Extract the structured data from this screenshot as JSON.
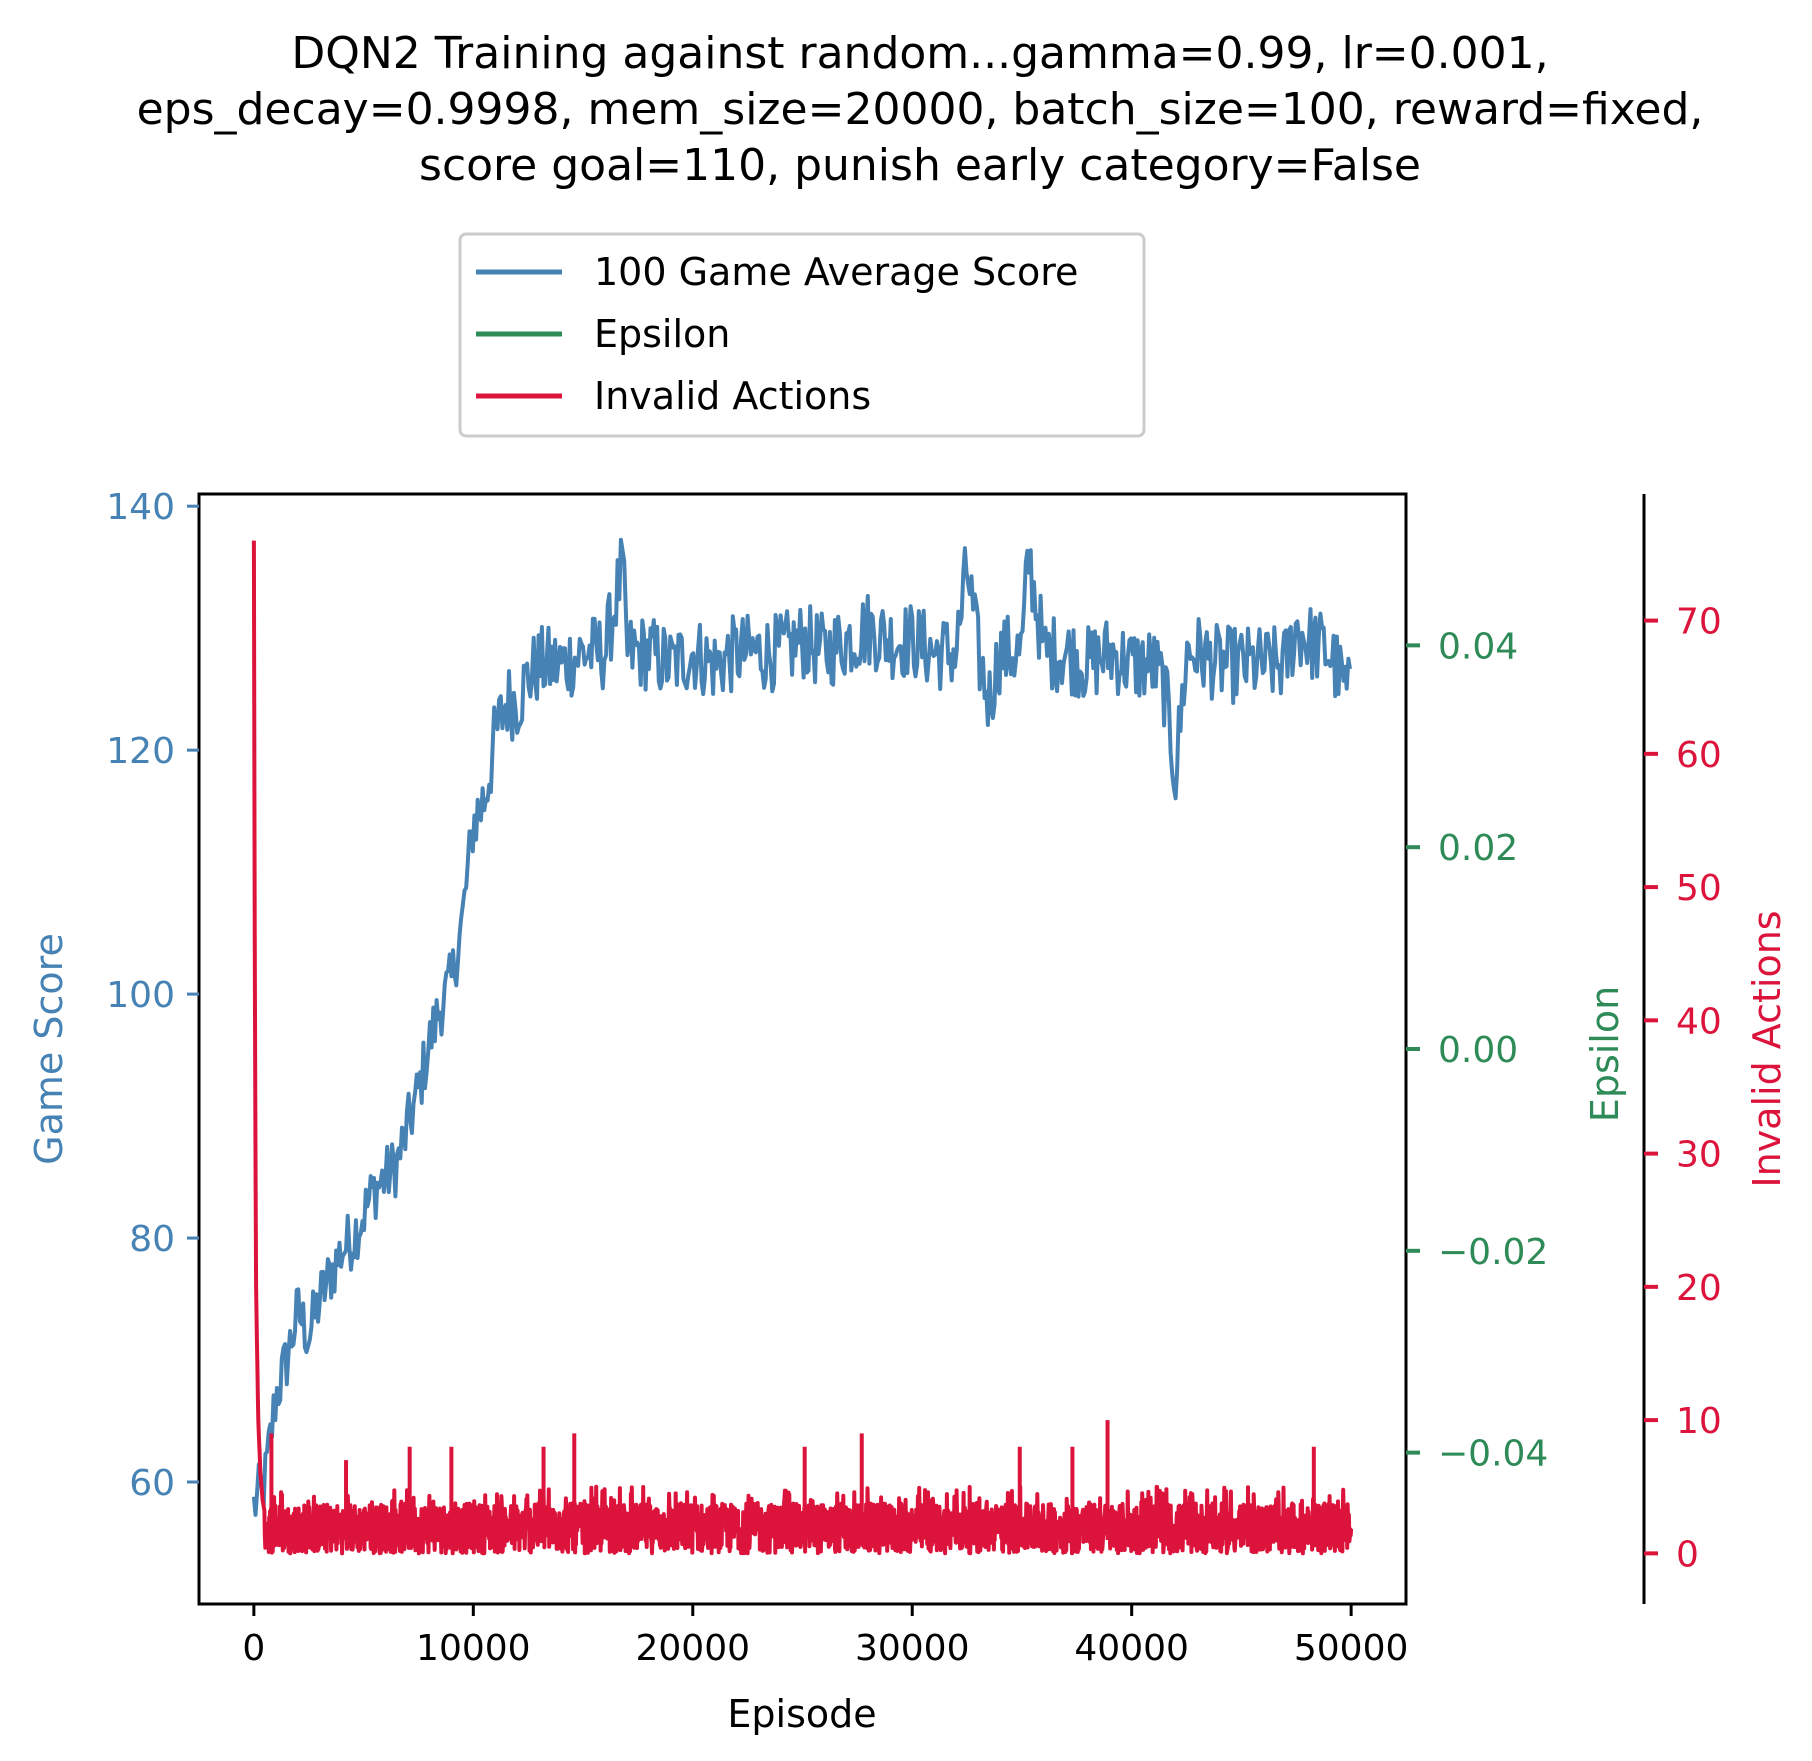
{
  "chart_data": {
    "type": "line",
    "title_lines": [
      "DQN2 Training against random...gamma=0.99, lr=0.001,",
      "eps_decay=0.9998, mem_size=20000, batch_size=100, reward=fixed,",
      "score goal=110, punish early category=False"
    ],
    "xlabel": "Episode",
    "xlim": [
      -2500,
      52500
    ],
    "xticks": [
      0,
      10000,
      20000,
      30000,
      40000,
      50000
    ],
    "xtick_labels": [
      "0",
      "10000",
      "20000",
      "30000",
      "40000",
      "50000"
    ],
    "axes": {
      "score": {
        "label": "Game Score",
        "color": "#4682b4",
        "ylim": [
          50,
          141
        ],
        "ticks": [
          60,
          80,
          100,
          120,
          140
        ],
        "tick_labels": [
          "60",
          "80",
          "100",
          "120",
          "140"
        ]
      },
      "epsilon": {
        "label": "Epsilon",
        "color": "#2e8b57",
        "ylim": [
          -0.055,
          0.055
        ],
        "ticks": [
          -0.04,
          -0.02,
          0.0,
          0.02,
          0.04
        ],
        "tick_labels": [
          "−0.04",
          "−0.02",
          "0.00",
          "0.02",
          "0.04"
        ]
      },
      "invalid": {
        "label": "Invalid Actions",
        "color": "#dc143c",
        "ylim": [
          -3.8,
          79.5
        ],
        "ticks": [
          0,
          10,
          20,
          30,
          40,
          50,
          60,
          70
        ],
        "tick_labels": [
          "0",
          "10",
          "20",
          "30",
          "40",
          "50",
          "60",
          "70"
        ]
      }
    },
    "legend": {
      "placement": "above plot, center",
      "entries": [
        "100 Game Average Score",
        "Epsilon",
        "Invalid Actions"
      ]
    },
    "series": [
      {
        "name": "100 Game Average Score",
        "axis": "score",
        "color": "#4682b4",
        "x": [
          0,
          500,
          1000,
          1500,
          2000,
          2500,
          3000,
          3500,
          4000,
          4500,
          5000,
          5500,
          6000,
          6500,
          7000,
          7500,
          8000,
          8500,
          9000,
          9500,
          10000,
          10500,
          11000,
          11500,
          12000,
          12500,
          13000,
          14000,
          15000,
          16000,
          16800,
          17000,
          18000,
          19000,
          20000,
          21000,
          22000,
          23000,
          24000,
          25000,
          26000,
          27000,
          28000,
          29000,
          30000,
          31000,
          32000,
          32500,
          33000,
          33500,
          34000,
          35000,
          35300,
          36000,
          37000,
          38000,
          39000,
          40000,
          41000,
          41500,
          42000,
          42500,
          43000,
          44000,
          45000,
          46000,
          47000,
          47500,
          48000,
          49000,
          50000
        ],
        "values": [
          58,
          60,
          67,
          70,
          74,
          72,
          75,
          77,
          79,
          80,
          82,
          84,
          85,
          86,
          89,
          92,
          96,
          99,
          101,
          106,
          114,
          116,
          121,
          124,
          124,
          126,
          127,
          127,
          128,
          128,
          135,
          128,
          128,
          127,
          128,
          127,
          128,
          128,
          128,
          129,
          128,
          129,
          130,
          129,
          129,
          128,
          128,
          135,
          128,
          124,
          128,
          128,
          136,
          128,
          128,
          127,
          128,
          127,
          127,
          125,
          118,
          128,
          128,
          127,
          127,
          127,
          127,
          130,
          129,
          128,
          124
        ],
        "noise": 3.2
      },
      {
        "name": "Epsilon",
        "axis": "epsilon",
        "color": "#2e8b57",
        "x": [],
        "values": []
      },
      {
        "name": "Invalid Actions",
        "axis": "invalid",
        "color": "#dc143c",
        "x": [
          0,
          50,
          100,
          200,
          300,
          400,
          500,
          1000,
          5000,
          10000,
          20000,
          30000,
          40000,
          50000
        ],
        "values": [
          76,
          40,
          20,
          10,
          6,
          4,
          3,
          2,
          2,
          2,
          2,
          2,
          2,
          2
        ],
        "typical_range": [
          0,
          5
        ],
        "spikes": [
          {
            "x": 800,
            "value": 9
          },
          {
            "x": 4200,
            "value": 7
          },
          {
            "x": 7100,
            "value": 8
          },
          {
            "x": 9000,
            "value": 8
          },
          {
            "x": 13200,
            "value": 8
          },
          {
            "x": 14600,
            "value": 9
          },
          {
            "x": 25100,
            "value": 8
          },
          {
            "x": 27700,
            "value": 9
          },
          {
            "x": 34900,
            "value": 8
          },
          {
            "x": 37300,
            "value": 8
          },
          {
            "x": 38900,
            "value": 10
          },
          {
            "x": 48300,
            "value": 8
          }
        ]
      }
    ]
  }
}
